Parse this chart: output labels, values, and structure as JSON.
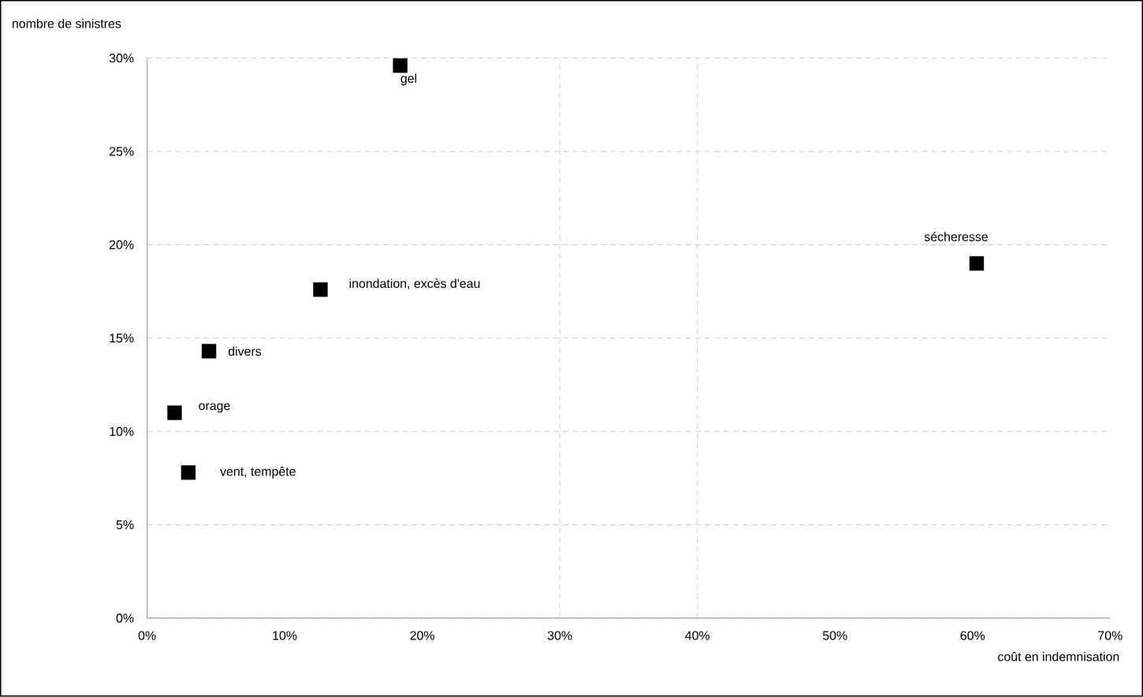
{
  "chart_data": {
    "type": "scatter",
    "xlabel": "coût en indemnisation",
    "ylabel": "nombre de sinistres",
    "x": [
      18.4,
      60.3,
      12.6,
      4.5,
      2.0,
      3.0
    ],
    "series": [
      {
        "color": "#000000",
        "values": [
          29.6,
          19.0,
          17.6,
          14.3,
          11.0,
          7.8
        ]
      }
    ],
    "marker": "square",
    "grid": "y",
    "xlim": [
      0,
      70
    ],
    "ylim": [
      0,
      30
    ],
    "xticks": [
      {
        "value": 0,
        "label": "0%"
      },
      {
        "value": 10,
        "label": "10%"
      },
      {
        "value": 20,
        "label": "20%"
      },
      {
        "value": 30,
        "label": "30%"
      },
      {
        "value": 40,
        "label": "40%"
      },
      {
        "value": 50,
        "label": "50%"
      },
      {
        "value": 60,
        "label": "60%"
      },
      {
        "value": 70,
        "label": "70%"
      }
    ],
    "yticks": [
      {
        "value": 0,
        "label": "0%"
      },
      {
        "value": 5,
        "label": "5%"
      },
      {
        "value": 10,
        "label": "10%"
      },
      {
        "value": 15,
        "label": "15%"
      },
      {
        "value": 20,
        "label": "20%"
      },
      {
        "value": 25,
        "label": "25%"
      },
      {
        "value": 30,
        "label": "30%"
      }
    ],
    "ref_lines": [
      {
        "axis": "x",
        "value": 30,
        "color": "#c8c8c8",
        "line_style": "dashed"
      },
      {
        "axis": "x",
        "value": 40,
        "color": "#c8c8c8",
        "line_style": "dashed"
      }
    ],
    "annotations": [
      {
        "text": "gel",
        "x": 18.4,
        "y": 29.6
      },
      {
        "text": "sécheresse",
        "x": 60.3,
        "y": 19.0
      },
      {
        "text": "inondation, excès d'eau",
        "x": 12.6,
        "y": 17.6
      },
      {
        "text": "divers",
        "x": 4.5,
        "y": 14.3
      },
      {
        "text": "orage",
        "x": 2.0,
        "y": 11.0
      },
      {
        "text": "vent, tempête",
        "x": 3.0,
        "y": 7.8
      }
    ]
  }
}
